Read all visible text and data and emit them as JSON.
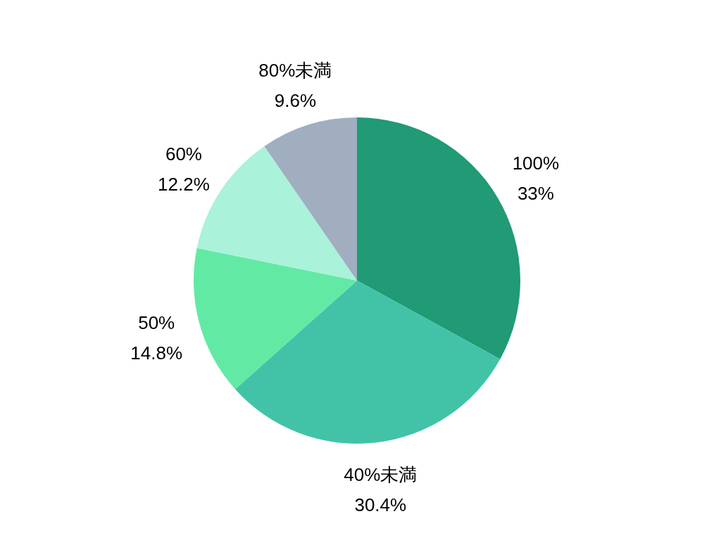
{
  "chart_data": {
    "type": "pie",
    "categories": [
      "100%",
      "40%未満",
      "50%",
      "60%",
      "80%未満"
    ],
    "values": [
      33,
      30.4,
      14.8,
      12.2,
      9.6
    ],
    "colors": [
      "#219a76",
      "#42c3a8",
      "#62eaa5",
      "#aaf2da",
      "#a0aec0"
    ],
    "value_labels": [
      "33%",
      "30.4%",
      "14.8%",
      "12.2%",
      "9.6%"
    ]
  }
}
